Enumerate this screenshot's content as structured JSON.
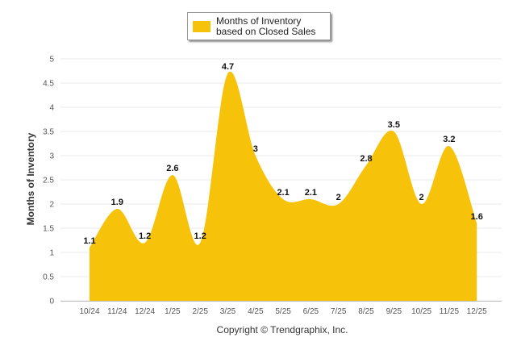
{
  "chart_data": {
    "type": "area",
    "categories": [
      "10/24",
      "11/24",
      "12/24",
      "1/25",
      "2/25",
      "3/25",
      "4/25",
      "5/25",
      "6/25",
      "7/25",
      "8/25",
      "9/25",
      "10/25",
      "11/25",
      "12/25"
    ],
    "series": [
      {
        "name": "Months of Inventory based on Closed Sales",
        "values": [
          1.1,
          1.9,
          1.2,
          2.6,
          1.2,
          4.7,
          3,
          2.1,
          2.1,
          2,
          2.8,
          3.5,
          2,
          3.2,
          1.6
        ],
        "labels": [
          "1.1",
          "1.9",
          "1.2",
          "2.6",
          "1.2",
          "4.7",
          "3",
          "2.1",
          "2.1",
          "2",
          "2.8",
          "3.5",
          "2",
          "3.2",
          "1.6"
        ]
      }
    ],
    "ylabel": "Months of Inventory",
    "xlabel": "",
    "ylim": [
      0,
      5
    ],
    "yticks": [
      "0",
      "0.5",
      "1",
      "1.5",
      "2",
      "2.5",
      "3",
      "3.5",
      "4",
      "4.5",
      "5"
    ],
    "grid": true,
    "legend_position": "top-center",
    "series_color": "#f7c20a",
    "grid_color": "#e8e8e8",
    "footer": "Copyright © Trendgraphix, Inc."
  }
}
